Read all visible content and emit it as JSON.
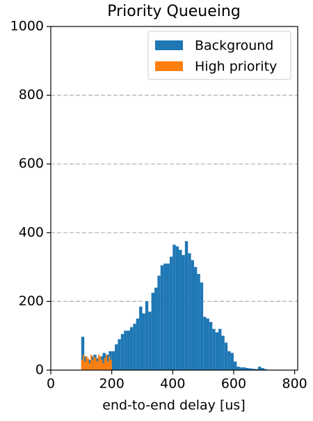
{
  "chart_data": {
    "type": "histogram",
    "title": "Priority Queueing",
    "x_label": "end-to-end delay [us]",
    "series": [
      {
        "name": "Background",
        "color": "#1f77b4",
        "bins": [
          100,
          110,
          120,
          130,
          140,
          150,
          160,
          170,
          180,
          190,
          200,
          210,
          220,
          230,
          240,
          250,
          260,
          270,
          280,
          290,
          300,
          310,
          320,
          330,
          340,
          350,
          360,
          370,
          380,
          390,
          400,
          410,
          420,
          430,
          440,
          450,
          460,
          470,
          480,
          490,
          500,
          510,
          520,
          530,
          540,
          550,
          560,
          570,
          580,
          590,
          600,
          610,
          620,
          630,
          640,
          650,
          660,
          670,
          680,
          690,
          700,
          710,
          720
        ],
        "values": [
          97,
          40,
          30,
          40,
          45,
          35,
          40,
          50,
          45,
          55,
          55,
          75,
          90,
          105,
          115,
          115,
          125,
          135,
          150,
          185,
          165,
          200,
          170,
          225,
          240,
          275,
          305,
          310,
          310,
          330,
          365,
          360,
          350,
          335,
          375,
          340,
          320,
          300,
          280,
          255,
          155,
          150,
          140,
          120,
          110,
          120,
          100,
          80,
          55,
          50,
          25,
          10,
          8,
          8,
          6,
          5,
          4,
          3,
          10,
          6,
          3,
          1
        ]
      },
      {
        "name": "High priority",
        "color": "#ff7f0e",
        "bins": [
          100,
          105,
          110,
          115,
          120,
          125,
          130,
          135,
          140,
          145,
          150,
          155,
          160,
          165,
          170,
          175,
          180,
          185,
          190,
          195,
          200
        ],
        "values": [
          30,
          45,
          25,
          40,
          35,
          20,
          45,
          30,
          40,
          35,
          25,
          45,
          40,
          30,
          20,
          35,
          45,
          25,
          40,
          30
        ]
      }
    ],
    "xlim": [
      0,
      810
    ],
    "ylim": [
      0,
      1000
    ],
    "xticks": [
      0,
      200,
      400,
      600,
      800
    ],
    "yticks": [
      0,
      200,
      400,
      600,
      800,
      1000
    ],
    "grid": true,
    "legend": "upper right"
  }
}
